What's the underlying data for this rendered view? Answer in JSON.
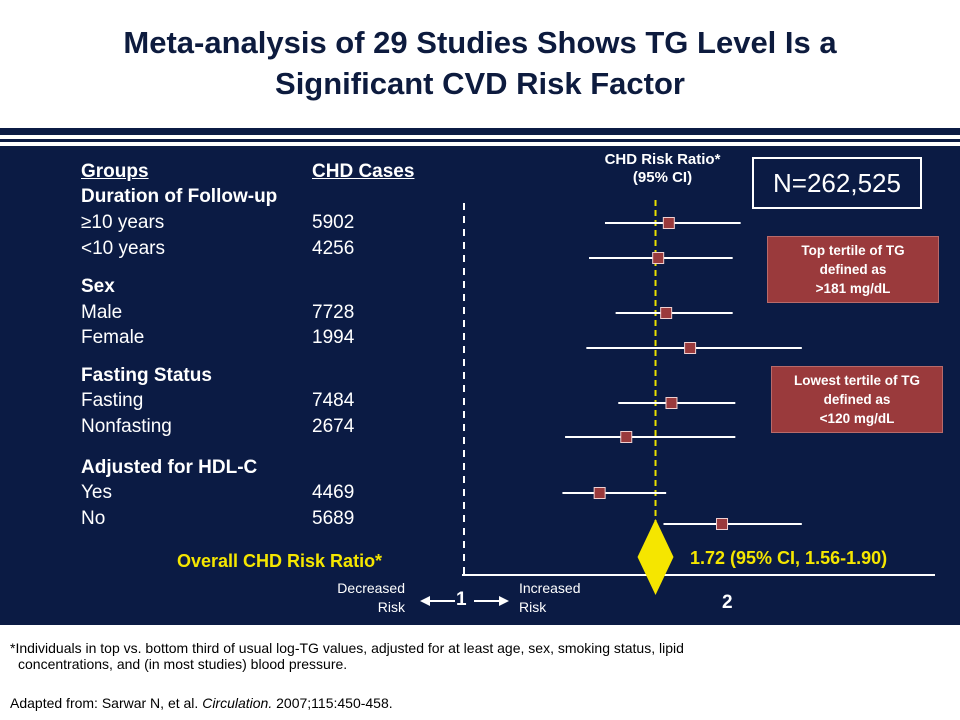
{
  "slide": {
    "title_line1": "Meta-analysis of 29 Studies Shows TG Level Is a",
    "title_line2": "Significant CVD Risk Factor"
  },
  "colors": {
    "background_panel": "#0b1b44",
    "marker": "#9a3a3c",
    "diamond": "#f5e600",
    "highlight_text": "#f5e600",
    "reference_line": "#e8e000"
  },
  "table": {
    "col_groups": "Groups",
    "col_cases": "CHD Cases",
    "col_ratio_line1": "CHD Risk Ratio*",
    "col_ratio_line2": "(95% CI)",
    "sections": [
      {
        "heading": "Duration of Follow-up",
        "rows": [
          {
            "label": "≥10 years",
            "cases": "5902"
          },
          {
            "label": "<10 years",
            "cases": "4256"
          }
        ]
      },
      {
        "heading": "Sex",
        "rows": [
          {
            "label": "Male",
            "cases": "7728"
          },
          {
            "label": "Female",
            "cases": "1994"
          }
        ]
      },
      {
        "heading": "Fasting Status",
        "rows": [
          {
            "label": "Fasting",
            "cases": "7484"
          },
          {
            "label": "Nonfasting",
            "cases": "2674"
          }
        ]
      },
      {
        "heading": "Adjusted for HDL-C",
        "rows": [
          {
            "label": "Yes",
            "cases": "4469"
          },
          {
            "label": "No",
            "cases": "5689"
          }
        ]
      }
    ],
    "overall_label": "Overall CHD Risk Ratio*"
  },
  "n_label": "N=262,525",
  "notes": {
    "top_tertile": [
      "Top tertile of TG",
      "defined as",
      ">181 mg/dL"
    ],
    "bottom_tertile": [
      "Lowest tertile of TG",
      "defined as",
      "<120 mg/dL"
    ]
  },
  "axis": {
    "decreased_line1": "Decreased",
    "decreased_line2": "Risk",
    "increased_line1": "Increased",
    "increased_line2": "Risk",
    "tick_1": "1",
    "tick_2": "2"
  },
  "chart_data": {
    "type": "forest",
    "xlabel_left": "Decreased Risk",
    "xlabel_right": "Increased Risk",
    "xticks": [
      1,
      2
    ],
    "xlim": [
      0.0,
      2.8
    ],
    "reference_line": 1,
    "overall_line": 1.72,
    "overall": {
      "label": "Overall CHD Risk Ratio*",
      "estimate": 1.72,
      "ci_low": 1.56,
      "ci_high": 1.9,
      "text": "1.72 (95% CI, 1.56-1.90)"
    },
    "rows": [
      {
        "group": "≥10 years",
        "estimate": 1.77,
        "ci_low": 1.53,
        "ci_high": 2.04
      },
      {
        "group": "<10 years",
        "estimate": 1.73,
        "ci_low": 1.47,
        "ci_high": 2.01
      },
      {
        "group": "Male",
        "estimate": 1.76,
        "ci_low": 1.57,
        "ci_high": 2.01
      },
      {
        "group": "Female",
        "estimate": 1.85,
        "ci_low": 1.46,
        "ci_high": 2.27
      },
      {
        "group": "Fasting",
        "estimate": 1.78,
        "ci_low": 1.58,
        "ci_high": 2.02
      },
      {
        "group": "Nonfasting",
        "estimate": 1.61,
        "ci_low": 1.38,
        "ci_high": 2.02
      },
      {
        "group": "Yes",
        "estimate": 1.51,
        "ci_low": 1.37,
        "ci_high": 1.76
      },
      {
        "group": "No",
        "estimate": 1.97,
        "ci_low": 1.75,
        "ci_high": 2.27
      }
    ]
  },
  "footnotes": {
    "line1": "*Individuals in top vs. bottom third of usual log-TG values, adjusted for at least age, sex, smoking status, lipid",
    "line2": "concentrations, and (in most studies) blood pressure.",
    "source_prefix": "Adapted from: Sarwar N, et al. ",
    "source_journal": "Circulation.",
    "source_suffix": " 2007;115:450-458."
  }
}
